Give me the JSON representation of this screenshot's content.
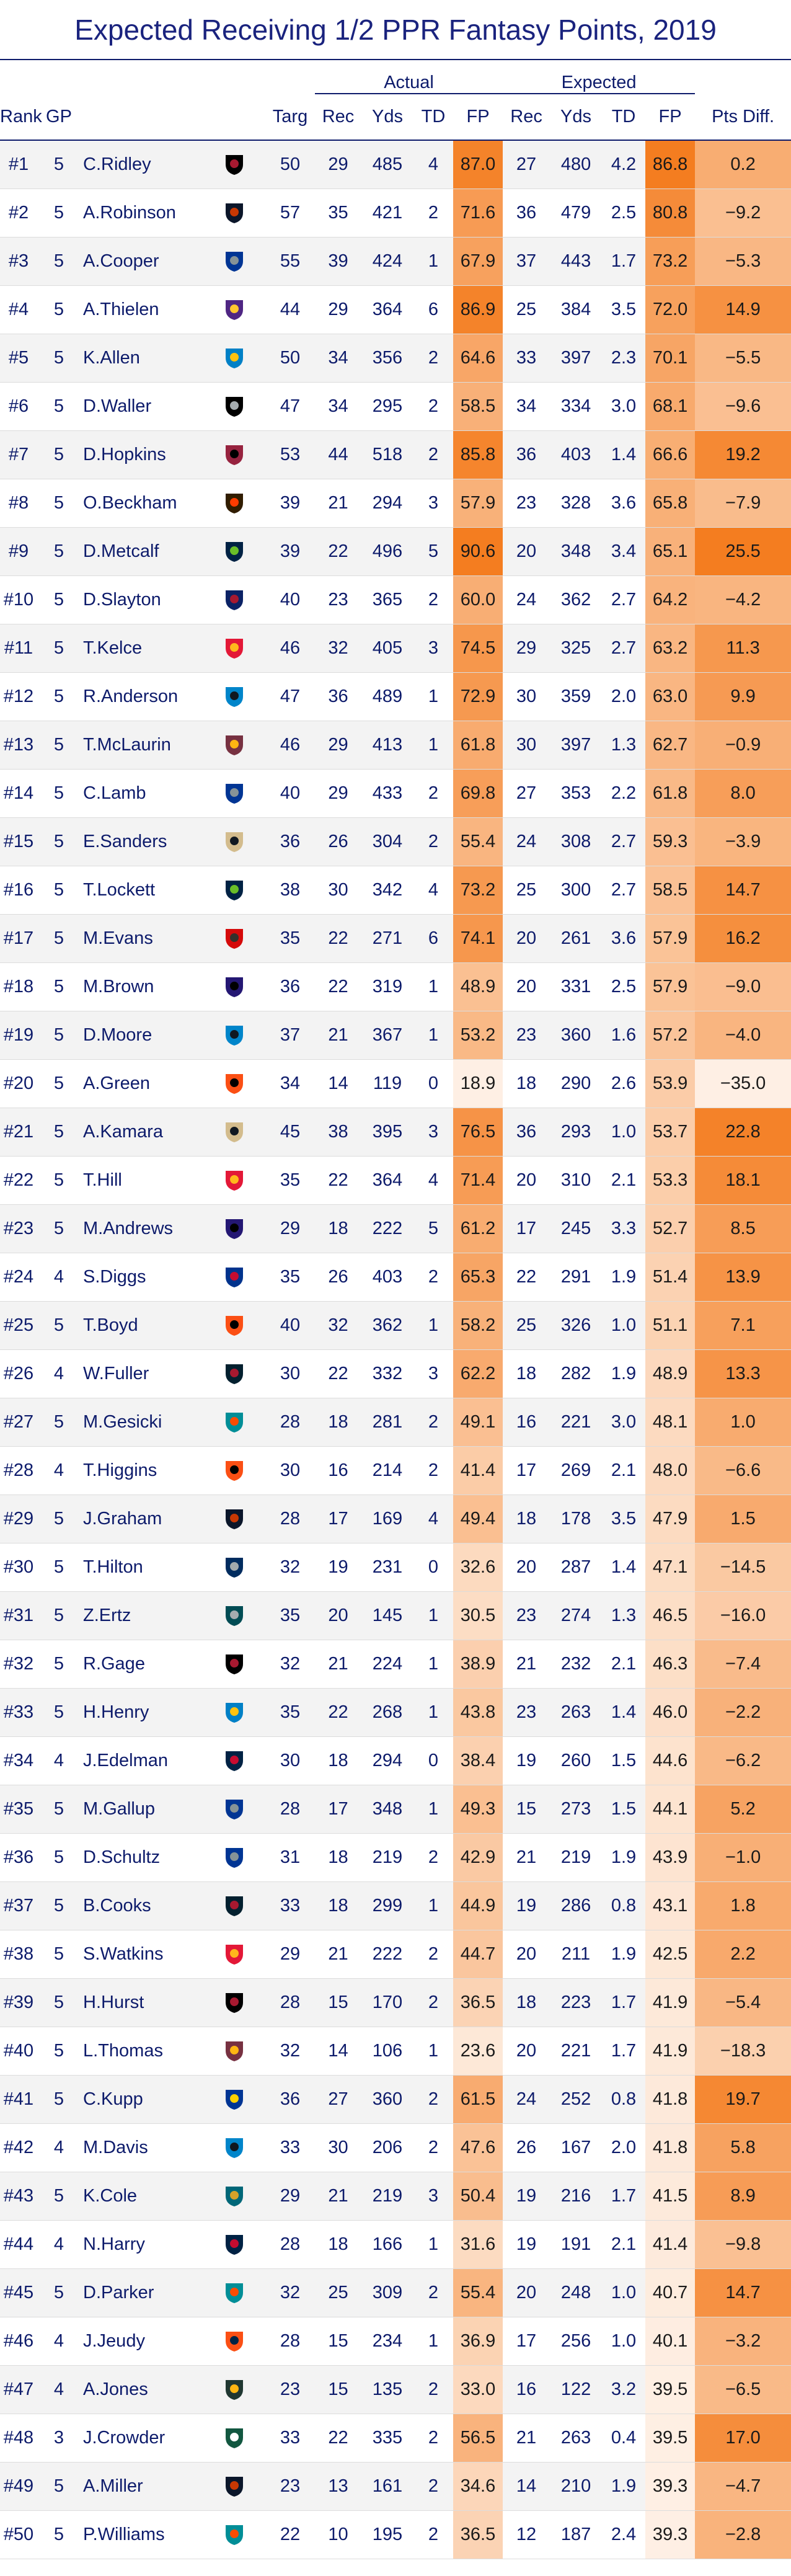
{
  "title": "Expected Receiving 1/2 PPR Fantasy Points, 2019",
  "group_headers": {
    "actual": "Actual",
    "expected": "Expected"
  },
  "columns": [
    "Rank",
    "GP",
    "",
    "",
    "Targ",
    "Rec",
    "Yds",
    "TD",
    "FP",
    "Rec",
    "Yds",
    "TD",
    "FP",
    "Pts Diff."
  ],
  "teams": {
    "ATL": {
      "primary": "#000000",
      "secondary": "#a71930",
      "icon": "falcon-icon"
    },
    "CHI": {
      "primary": "#0b162a",
      "secondary": "#c83803",
      "icon": "c-letter-icon"
    },
    "DAL": {
      "primary": "#003594",
      "secondary": "#869397",
      "icon": "star-icon"
    },
    "MIN": {
      "primary": "#4f2683",
      "secondary": "#ffc62f",
      "icon": "viking-icon"
    },
    "LAC": {
      "primary": "#0080c6",
      "secondary": "#ffc20e",
      "icon": "bolt-icon"
    },
    "OAK": {
      "primary": "#000000",
      "secondary": "#a5acaf",
      "icon": "raiders-shield-icon"
    },
    "ARI": {
      "primary": "#97233f",
      "secondary": "#000000",
      "icon": "cardinal-icon"
    },
    "CLE": {
      "primary": "#311d00",
      "secondary": "#ff3c00",
      "icon": "helmet-icon"
    },
    "SEA": {
      "primary": "#002244",
      "secondary": "#69be28",
      "icon": "seahawk-icon"
    },
    "NYG": {
      "primary": "#0b2265",
      "secondary": "#a71930",
      "icon": "ny-letters-icon"
    },
    "KC": {
      "primary": "#e31837",
      "secondary": "#ffb81c",
      "icon": "arrowhead-icon"
    },
    "CAR": {
      "primary": "#0085ca",
      "secondary": "#101820",
      "icon": "panther-icon"
    },
    "WAS": {
      "primary": "#773141",
      "secondary": "#ffb612",
      "icon": "w-letter-icon"
    },
    "NO": {
      "primary": "#d3bc8d",
      "secondary": "#101820",
      "icon": "fleur-de-lis-icon"
    },
    "TB": {
      "primary": "#d50a0a",
      "secondary": "#34302b",
      "icon": "pirate-flag-icon"
    },
    "BAL": {
      "primary": "#241773",
      "secondary": "#000000",
      "icon": "raven-icon"
    },
    "CIN": {
      "primary": "#fb4f14",
      "secondary": "#000000",
      "icon": "bengal-stripes-icon"
    },
    "BUF": {
      "primary": "#00338d",
      "secondary": "#c60c30",
      "icon": "buffalo-icon"
    },
    "HOU": {
      "primary": "#03202f",
      "secondary": "#a71930",
      "icon": "bull-icon"
    },
    "MIA": {
      "primary": "#008e97",
      "secondary": "#fc4c02",
      "icon": "dolphin-icon"
    },
    "PHI": {
      "primary": "#004c54",
      "secondary": "#a5acaf",
      "icon": "eagle-icon"
    },
    "IND": {
      "primary": "#002c5f",
      "secondary": "#a2aaad",
      "icon": "horseshoe-icon"
    },
    "NE": {
      "primary": "#002244",
      "secondary": "#c60c30",
      "icon": "patriot-icon"
    },
    "LAR": {
      "primary": "#003594",
      "secondary": "#ffd100",
      "icon": "ram-horn-icon"
    },
    "JAX": {
      "primary": "#006778",
      "secondary": "#d7a22a",
      "icon": "jaguar-icon"
    },
    "DEN": {
      "primary": "#fb4f14",
      "secondary": "#002244",
      "icon": "bronco-icon"
    },
    "GB": {
      "primary": "#203731",
      "secondary": "#ffb612",
      "icon": "g-letter-icon"
    },
    "NYJ": {
      "primary": "#125740",
      "secondary": "#ffffff",
      "icon": "jets-oval-icon"
    }
  },
  "heat_scale": {
    "low": "#ffffff",
    "high": "#f47d20"
  },
  "rows": [
    {
      "rank": "#1",
      "gp": "5",
      "player": "C.Ridley",
      "team": "ATL",
      "targ": "50",
      "a_rec": "29",
      "a_yds": "485",
      "a_td": "4",
      "a_fp": "87.0",
      "e_rec": "27",
      "e_yds": "480",
      "e_td": "4.2",
      "e_fp": "86.8",
      "diff": "0.2"
    },
    {
      "rank": "#2",
      "gp": "5",
      "player": "A.Robinson",
      "team": "CHI",
      "targ": "57",
      "a_rec": "35",
      "a_yds": "421",
      "a_td": "2",
      "a_fp": "71.6",
      "e_rec": "36",
      "e_yds": "479",
      "e_td": "2.5",
      "e_fp": "80.8",
      "diff": "−9.2"
    },
    {
      "rank": "#3",
      "gp": "5",
      "player": "A.Cooper",
      "team": "DAL",
      "targ": "55",
      "a_rec": "39",
      "a_yds": "424",
      "a_td": "1",
      "a_fp": "67.9",
      "e_rec": "37",
      "e_yds": "443",
      "e_td": "1.7",
      "e_fp": "73.2",
      "diff": "−5.3"
    },
    {
      "rank": "#4",
      "gp": "5",
      "player": "A.Thielen",
      "team": "MIN",
      "targ": "44",
      "a_rec": "29",
      "a_yds": "364",
      "a_td": "6",
      "a_fp": "86.9",
      "e_rec": "25",
      "e_yds": "384",
      "e_td": "3.5",
      "e_fp": "72.0",
      "diff": "14.9"
    },
    {
      "rank": "#5",
      "gp": "5",
      "player": "K.Allen",
      "team": "LAC",
      "targ": "50",
      "a_rec": "34",
      "a_yds": "356",
      "a_td": "2",
      "a_fp": "64.6",
      "e_rec": "33",
      "e_yds": "397",
      "e_td": "2.3",
      "e_fp": "70.1",
      "diff": "−5.5"
    },
    {
      "rank": "#6",
      "gp": "5",
      "player": "D.Waller",
      "team": "OAK",
      "targ": "47",
      "a_rec": "34",
      "a_yds": "295",
      "a_td": "2",
      "a_fp": "58.5",
      "e_rec": "34",
      "e_yds": "334",
      "e_td": "3.0",
      "e_fp": "68.1",
      "diff": "−9.6"
    },
    {
      "rank": "#7",
      "gp": "5",
      "player": "D.Hopkins",
      "team": "ARI",
      "targ": "53",
      "a_rec": "44",
      "a_yds": "518",
      "a_td": "2",
      "a_fp": "85.8",
      "e_rec": "36",
      "e_yds": "403",
      "e_td": "1.4",
      "e_fp": "66.6",
      "diff": "19.2"
    },
    {
      "rank": "#8",
      "gp": "5",
      "player": "O.Beckham",
      "team": "CLE",
      "targ": "39",
      "a_rec": "21",
      "a_yds": "294",
      "a_td": "3",
      "a_fp": "57.9",
      "e_rec": "23",
      "e_yds": "328",
      "e_td": "3.6",
      "e_fp": "65.8",
      "diff": "−7.9"
    },
    {
      "rank": "#9",
      "gp": "5",
      "player": "D.Metcalf",
      "team": "SEA",
      "targ": "39",
      "a_rec": "22",
      "a_yds": "496",
      "a_td": "5",
      "a_fp": "90.6",
      "e_rec": "20",
      "e_yds": "348",
      "e_td": "3.4",
      "e_fp": "65.1",
      "diff": "25.5"
    },
    {
      "rank": "#10",
      "gp": "5",
      "player": "D.Slayton",
      "team": "NYG",
      "targ": "40",
      "a_rec": "23",
      "a_yds": "365",
      "a_td": "2",
      "a_fp": "60.0",
      "e_rec": "24",
      "e_yds": "362",
      "e_td": "2.7",
      "e_fp": "64.2",
      "diff": "−4.2"
    },
    {
      "rank": "#11",
      "gp": "5",
      "player": "T.Kelce",
      "team": "KC",
      "targ": "46",
      "a_rec": "32",
      "a_yds": "405",
      "a_td": "3",
      "a_fp": "74.5",
      "e_rec": "29",
      "e_yds": "325",
      "e_td": "2.7",
      "e_fp": "63.2",
      "diff": "11.3"
    },
    {
      "rank": "#12",
      "gp": "5",
      "player": "R.Anderson",
      "team": "CAR",
      "targ": "47",
      "a_rec": "36",
      "a_yds": "489",
      "a_td": "1",
      "a_fp": "72.9",
      "e_rec": "30",
      "e_yds": "359",
      "e_td": "2.0",
      "e_fp": "63.0",
      "diff": "9.9"
    },
    {
      "rank": "#13",
      "gp": "5",
      "player": "T.McLaurin",
      "team": "WAS",
      "targ": "46",
      "a_rec": "29",
      "a_yds": "413",
      "a_td": "1",
      "a_fp": "61.8",
      "e_rec": "30",
      "e_yds": "397",
      "e_td": "1.3",
      "e_fp": "62.7",
      "diff": "−0.9"
    },
    {
      "rank": "#14",
      "gp": "5",
      "player": "C.Lamb",
      "team": "DAL",
      "targ": "40",
      "a_rec": "29",
      "a_yds": "433",
      "a_td": "2",
      "a_fp": "69.8",
      "e_rec": "27",
      "e_yds": "353",
      "e_td": "2.2",
      "e_fp": "61.8",
      "diff": "8.0"
    },
    {
      "rank": "#15",
      "gp": "5",
      "player": "E.Sanders",
      "team": "NO",
      "targ": "36",
      "a_rec": "26",
      "a_yds": "304",
      "a_td": "2",
      "a_fp": "55.4",
      "e_rec": "24",
      "e_yds": "308",
      "e_td": "2.7",
      "e_fp": "59.3",
      "diff": "−3.9"
    },
    {
      "rank": "#16",
      "gp": "5",
      "player": "T.Lockett",
      "team": "SEA",
      "targ": "38",
      "a_rec": "30",
      "a_yds": "342",
      "a_td": "4",
      "a_fp": "73.2",
      "e_rec": "25",
      "e_yds": "300",
      "e_td": "2.7",
      "e_fp": "58.5",
      "diff": "14.7"
    },
    {
      "rank": "#17",
      "gp": "5",
      "player": "M.Evans",
      "team": "TB",
      "targ": "35",
      "a_rec": "22",
      "a_yds": "271",
      "a_td": "6",
      "a_fp": "74.1",
      "e_rec": "20",
      "e_yds": "261",
      "e_td": "3.6",
      "e_fp": "57.9",
      "diff": "16.2"
    },
    {
      "rank": "#18",
      "gp": "5",
      "player": "M.Brown",
      "team": "BAL",
      "targ": "36",
      "a_rec": "22",
      "a_yds": "319",
      "a_td": "1",
      "a_fp": "48.9",
      "e_rec": "20",
      "e_yds": "331",
      "e_td": "2.5",
      "e_fp": "57.9",
      "diff": "−9.0"
    },
    {
      "rank": "#19",
      "gp": "5",
      "player": "D.Moore",
      "team": "CAR",
      "targ": "37",
      "a_rec": "21",
      "a_yds": "367",
      "a_td": "1",
      "a_fp": "53.2",
      "e_rec": "23",
      "e_yds": "360",
      "e_td": "1.6",
      "e_fp": "57.2",
      "diff": "−4.0"
    },
    {
      "rank": "#20",
      "gp": "5",
      "player": "A.Green",
      "team": "CIN",
      "targ": "34",
      "a_rec": "14",
      "a_yds": "119",
      "a_td": "0",
      "a_fp": "18.9",
      "e_rec": "18",
      "e_yds": "290",
      "e_td": "2.6",
      "e_fp": "53.9",
      "diff": "−35.0"
    },
    {
      "rank": "#21",
      "gp": "5",
      "player": "A.Kamara",
      "team": "NO",
      "targ": "45",
      "a_rec": "38",
      "a_yds": "395",
      "a_td": "3",
      "a_fp": "76.5",
      "e_rec": "36",
      "e_yds": "293",
      "e_td": "1.0",
      "e_fp": "53.7",
      "diff": "22.8"
    },
    {
      "rank": "#22",
      "gp": "5",
      "player": "T.Hill",
      "team": "KC",
      "targ": "35",
      "a_rec": "22",
      "a_yds": "364",
      "a_td": "4",
      "a_fp": "71.4",
      "e_rec": "20",
      "e_yds": "310",
      "e_td": "2.1",
      "e_fp": "53.3",
      "diff": "18.1"
    },
    {
      "rank": "#23",
      "gp": "5",
      "player": "M.Andrews",
      "team": "BAL",
      "targ": "29",
      "a_rec": "18",
      "a_yds": "222",
      "a_td": "5",
      "a_fp": "61.2",
      "e_rec": "17",
      "e_yds": "245",
      "e_td": "3.3",
      "e_fp": "52.7",
      "diff": "8.5"
    },
    {
      "rank": "#24",
      "gp": "4",
      "player": "S.Diggs",
      "team": "BUF",
      "targ": "35",
      "a_rec": "26",
      "a_yds": "403",
      "a_td": "2",
      "a_fp": "65.3",
      "e_rec": "22",
      "e_yds": "291",
      "e_td": "1.9",
      "e_fp": "51.4",
      "diff": "13.9"
    },
    {
      "rank": "#25",
      "gp": "5",
      "player": "T.Boyd",
      "team": "CIN",
      "targ": "40",
      "a_rec": "32",
      "a_yds": "362",
      "a_td": "1",
      "a_fp": "58.2",
      "e_rec": "25",
      "e_yds": "326",
      "e_td": "1.0",
      "e_fp": "51.1",
      "diff": "7.1"
    },
    {
      "rank": "#26",
      "gp": "4",
      "player": "W.Fuller",
      "team": "HOU",
      "targ": "30",
      "a_rec": "22",
      "a_yds": "332",
      "a_td": "3",
      "a_fp": "62.2",
      "e_rec": "18",
      "e_yds": "282",
      "e_td": "1.9",
      "e_fp": "48.9",
      "diff": "13.3"
    },
    {
      "rank": "#27",
      "gp": "5",
      "player": "M.Gesicki",
      "team": "MIA",
      "targ": "28",
      "a_rec": "18",
      "a_yds": "281",
      "a_td": "2",
      "a_fp": "49.1",
      "e_rec": "16",
      "e_yds": "221",
      "e_td": "3.0",
      "e_fp": "48.1",
      "diff": "1.0"
    },
    {
      "rank": "#28",
      "gp": "4",
      "player": "T.Higgins",
      "team": "CIN",
      "targ": "30",
      "a_rec": "16",
      "a_yds": "214",
      "a_td": "2",
      "a_fp": "41.4",
      "e_rec": "17",
      "e_yds": "269",
      "e_td": "2.1",
      "e_fp": "48.0",
      "diff": "−6.6"
    },
    {
      "rank": "#29",
      "gp": "5",
      "player": "J.Graham",
      "team": "CHI",
      "targ": "28",
      "a_rec": "17",
      "a_yds": "169",
      "a_td": "4",
      "a_fp": "49.4",
      "e_rec": "18",
      "e_yds": "178",
      "e_td": "3.5",
      "e_fp": "47.9",
      "diff": "1.5"
    },
    {
      "rank": "#30",
      "gp": "5",
      "player": "T.Hilton",
      "team": "IND",
      "targ": "32",
      "a_rec": "19",
      "a_yds": "231",
      "a_td": "0",
      "a_fp": "32.6",
      "e_rec": "20",
      "e_yds": "287",
      "e_td": "1.4",
      "e_fp": "47.1",
      "diff": "−14.5"
    },
    {
      "rank": "#31",
      "gp": "5",
      "player": "Z.Ertz",
      "team": "PHI",
      "targ": "35",
      "a_rec": "20",
      "a_yds": "145",
      "a_td": "1",
      "a_fp": "30.5",
      "e_rec": "23",
      "e_yds": "274",
      "e_td": "1.3",
      "e_fp": "46.5",
      "diff": "−16.0"
    },
    {
      "rank": "#32",
      "gp": "5",
      "player": "R.Gage",
      "team": "ATL",
      "targ": "32",
      "a_rec": "21",
      "a_yds": "224",
      "a_td": "1",
      "a_fp": "38.9",
      "e_rec": "21",
      "e_yds": "232",
      "e_td": "2.1",
      "e_fp": "46.3",
      "diff": "−7.4"
    },
    {
      "rank": "#33",
      "gp": "5",
      "player": "H.Henry",
      "team": "LAC",
      "targ": "35",
      "a_rec": "22",
      "a_yds": "268",
      "a_td": "1",
      "a_fp": "43.8",
      "e_rec": "23",
      "e_yds": "263",
      "e_td": "1.4",
      "e_fp": "46.0",
      "diff": "−2.2"
    },
    {
      "rank": "#34",
      "gp": "4",
      "player": "J.Edelman",
      "team": "NE",
      "targ": "30",
      "a_rec": "18",
      "a_yds": "294",
      "a_td": "0",
      "a_fp": "38.4",
      "e_rec": "19",
      "e_yds": "260",
      "e_td": "1.5",
      "e_fp": "44.6",
      "diff": "−6.2"
    },
    {
      "rank": "#35",
      "gp": "5",
      "player": "M.Gallup",
      "team": "DAL",
      "targ": "28",
      "a_rec": "17",
      "a_yds": "348",
      "a_td": "1",
      "a_fp": "49.3",
      "e_rec": "15",
      "e_yds": "273",
      "e_td": "1.5",
      "e_fp": "44.1",
      "diff": "5.2"
    },
    {
      "rank": "#36",
      "gp": "5",
      "player": "D.Schultz",
      "team": "DAL",
      "targ": "31",
      "a_rec": "18",
      "a_yds": "219",
      "a_td": "2",
      "a_fp": "42.9",
      "e_rec": "21",
      "e_yds": "219",
      "e_td": "1.9",
      "e_fp": "43.9",
      "diff": "−1.0"
    },
    {
      "rank": "#37",
      "gp": "5",
      "player": "B.Cooks",
      "team": "HOU",
      "targ": "33",
      "a_rec": "18",
      "a_yds": "299",
      "a_td": "1",
      "a_fp": "44.9",
      "e_rec": "19",
      "e_yds": "286",
      "e_td": "0.8",
      "e_fp": "43.1",
      "diff": "1.8"
    },
    {
      "rank": "#38",
      "gp": "5",
      "player": "S.Watkins",
      "team": "KC",
      "targ": "29",
      "a_rec": "21",
      "a_yds": "222",
      "a_td": "2",
      "a_fp": "44.7",
      "e_rec": "20",
      "e_yds": "211",
      "e_td": "1.9",
      "e_fp": "42.5",
      "diff": "2.2"
    },
    {
      "rank": "#39",
      "gp": "5",
      "player": "H.Hurst",
      "team": "ATL",
      "targ": "28",
      "a_rec": "15",
      "a_yds": "170",
      "a_td": "2",
      "a_fp": "36.5",
      "e_rec": "18",
      "e_yds": "223",
      "e_td": "1.7",
      "e_fp": "41.9",
      "diff": "−5.4"
    },
    {
      "rank": "#40",
      "gp": "5",
      "player": "L.Thomas",
      "team": "WAS",
      "targ": "32",
      "a_rec": "14",
      "a_yds": "106",
      "a_td": "1",
      "a_fp": "23.6",
      "e_rec": "20",
      "e_yds": "221",
      "e_td": "1.7",
      "e_fp": "41.9",
      "diff": "−18.3"
    },
    {
      "rank": "#41",
      "gp": "5",
      "player": "C.Kupp",
      "team": "LAR",
      "targ": "36",
      "a_rec": "27",
      "a_yds": "360",
      "a_td": "2",
      "a_fp": "61.5",
      "e_rec": "24",
      "e_yds": "252",
      "e_td": "0.8",
      "e_fp": "41.8",
      "diff": "19.7"
    },
    {
      "rank": "#42",
      "gp": "4",
      "player": "M.Davis",
      "team": "CAR",
      "targ": "33",
      "a_rec": "30",
      "a_yds": "206",
      "a_td": "2",
      "a_fp": "47.6",
      "e_rec": "26",
      "e_yds": "167",
      "e_td": "2.0",
      "e_fp": "41.8",
      "diff": "5.8"
    },
    {
      "rank": "#43",
      "gp": "5",
      "player": "K.Cole",
      "team": "JAX",
      "targ": "29",
      "a_rec": "21",
      "a_yds": "219",
      "a_td": "3",
      "a_fp": "50.4",
      "e_rec": "19",
      "e_yds": "216",
      "e_td": "1.7",
      "e_fp": "41.5",
      "diff": "8.9"
    },
    {
      "rank": "#44",
      "gp": "4",
      "player": "N.Harry",
      "team": "NE",
      "targ": "28",
      "a_rec": "18",
      "a_yds": "166",
      "a_td": "1",
      "a_fp": "31.6",
      "e_rec": "19",
      "e_yds": "191",
      "e_td": "2.1",
      "e_fp": "41.4",
      "diff": "−9.8"
    },
    {
      "rank": "#45",
      "gp": "5",
      "player": "D.Parker",
      "team": "MIA",
      "targ": "32",
      "a_rec": "25",
      "a_yds": "309",
      "a_td": "2",
      "a_fp": "55.4",
      "e_rec": "20",
      "e_yds": "248",
      "e_td": "1.0",
      "e_fp": "40.7",
      "diff": "14.7"
    },
    {
      "rank": "#46",
      "gp": "4",
      "player": "J.Jeudy",
      "team": "DEN",
      "targ": "28",
      "a_rec": "15",
      "a_yds": "234",
      "a_td": "1",
      "a_fp": "36.9",
      "e_rec": "17",
      "e_yds": "256",
      "e_td": "1.0",
      "e_fp": "40.1",
      "diff": "−3.2"
    },
    {
      "rank": "#47",
      "gp": "4",
      "player": "A.Jones",
      "team": "GB",
      "targ": "23",
      "a_rec": "15",
      "a_yds": "135",
      "a_td": "2",
      "a_fp": "33.0",
      "e_rec": "16",
      "e_yds": "122",
      "e_td": "3.2",
      "e_fp": "39.5",
      "diff": "−6.5"
    },
    {
      "rank": "#48",
      "gp": "3",
      "player": "J.Crowder",
      "team": "NYJ",
      "targ": "33",
      "a_rec": "22",
      "a_yds": "335",
      "a_td": "2",
      "a_fp": "56.5",
      "e_rec": "21",
      "e_yds": "263",
      "e_td": "0.4",
      "e_fp": "39.5",
      "diff": "17.0"
    },
    {
      "rank": "#49",
      "gp": "5",
      "player": "A.Miller",
      "team": "CHI",
      "targ": "23",
      "a_rec": "13",
      "a_yds": "161",
      "a_td": "2",
      "a_fp": "34.6",
      "e_rec": "14",
      "e_yds": "210",
      "e_td": "1.9",
      "e_fp": "39.3",
      "diff": "−4.7"
    },
    {
      "rank": "#50",
      "gp": "5",
      "player": "P.Williams",
      "team": "MIA",
      "targ": "22",
      "a_rec": "10",
      "a_yds": "195",
      "a_td": "2",
      "a_fp": "36.5",
      "e_rec": "12",
      "e_yds": "187",
      "e_td": "2.4",
      "e_fp": "39.3",
      "diff": "−2.8"
    }
  ]
}
